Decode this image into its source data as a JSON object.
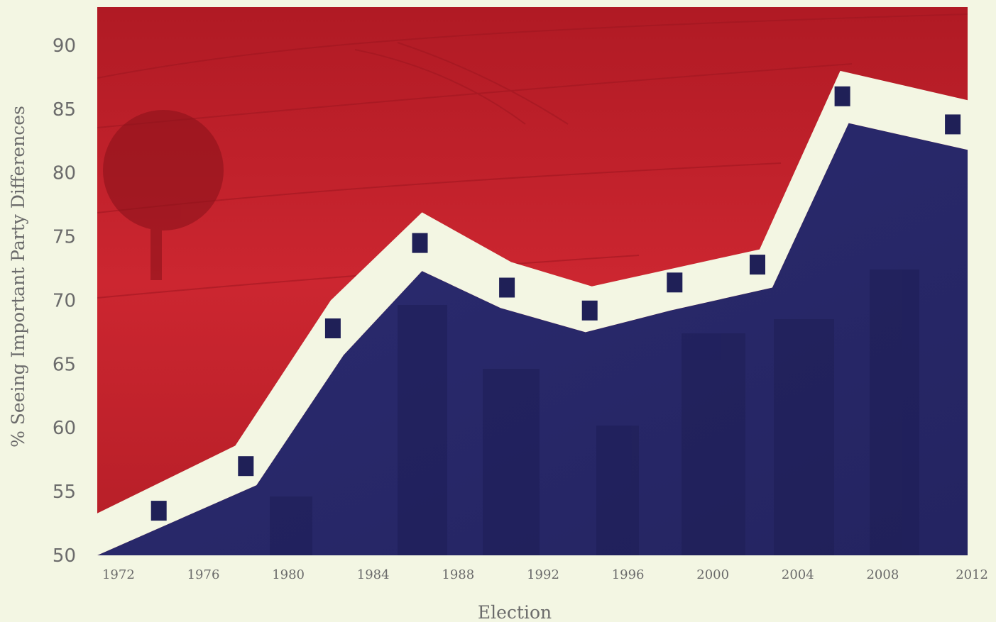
{
  "chart_data": {
    "type": "scatter",
    "xlabel": "Election",
    "ylabel": "% Seeing Important Party Differences",
    "xlim": [
      1971,
      2012
    ],
    "ylim": [
      50,
      93
    ],
    "x_ticks": [
      "1972",
      "1976",
      "1980",
      "1984",
      "1988",
      "1992",
      "1996",
      "2000",
      "2004",
      "2008",
      "2012"
    ],
    "y_ticks": [
      "50",
      "55",
      "60",
      "65",
      "70",
      "75",
      "80",
      "85",
      "90"
    ],
    "series": [
      {
        "x": [
          1973.9,
          1978.0,
          1982.1,
          1986.2,
          1990.3,
          1994.2,
          1998.2,
          2002.1,
          2006.1,
          2011.3
        ],
        "y": [
          53.5,
          57.0,
          67.8,
          74.5,
          71.0,
          69.2,
          71.4,
          72.8,
          86.0,
          83.8
        ]
      }
    ],
    "band_upper": [
      {
        "x": 1971.0,
        "y": 53.3
      },
      {
        "x": 1977.5,
        "y": 58.6
      },
      {
        "x": 1982.0,
        "y": 70.0
      },
      {
        "x": 1986.3,
        "y": 76.9
      },
      {
        "x": 1990.5,
        "y": 73.0
      },
      {
        "x": 1994.3,
        "y": 71.1
      },
      {
        "x": 2002.2,
        "y": 74.0
      },
      {
        "x": 2006.0,
        "y": 88.0
      },
      {
        "x": 2012.0,
        "y": 85.7
      }
    ],
    "band_lower": [
      {
        "x": 1971.0,
        "y": 50.0
      },
      {
        "x": 1978.5,
        "y": 55.5
      },
      {
        "x": 1982.6,
        "y": 65.7
      },
      {
        "x": 1986.3,
        "y": 72.3
      },
      {
        "x": 1990.0,
        "y": 69.4
      },
      {
        "x": 1994.0,
        "y": 67.5
      },
      {
        "x": 1998.0,
        "y": 69.2
      },
      {
        "x": 2002.8,
        "y": 71.0
      },
      {
        "x": 2006.4,
        "y": 83.9
      },
      {
        "x": 2012.0,
        "y": 81.8
      }
    ],
    "colors": {
      "background": "#f3f6e3",
      "rural_red": "#c8202b",
      "urban_navy": "#2a2b6e",
      "band": "#f3f6e3",
      "marker": "#1f2057",
      "text": "#6b6b6b"
    },
    "grid": false,
    "legend": "none"
  }
}
